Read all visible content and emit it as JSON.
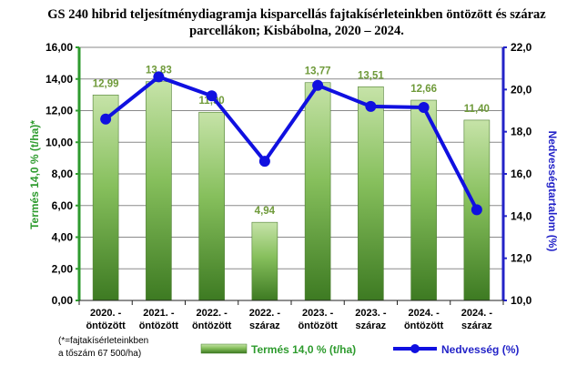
{
  "chart_data": {
    "type": "bar",
    "title_line1": "GS 240 hibrid teljesítménydiagramja kisparcellás fajtakísérleteinkben öntözött és száraz",
    "title_line2": "parcellákon; Kisbábolna, 2020 – 2024.",
    "categories": [
      [
        "2020. -",
        "öntözött"
      ],
      [
        "2021. -",
        "öntözött"
      ],
      [
        "2022. -",
        "öntözött"
      ],
      [
        "2022. -",
        "száraz"
      ],
      [
        "2023. -",
        "öntözött"
      ],
      [
        "2023. -",
        "száraz"
      ],
      [
        "2024. -",
        "öntözött"
      ],
      [
        "2024. -",
        "száraz"
      ]
    ],
    "series": [
      {
        "name": "Termés 14,0 % (t/ha)",
        "kind": "bar",
        "axis": "left",
        "values": [
          12.99,
          13.83,
          11.9,
          4.94,
          13.77,
          13.51,
          12.66,
          11.4
        ],
        "labels": [
          "12,99",
          "13,83",
          "11,90",
          "4,94",
          "13,77",
          "13,51",
          "12,66",
          "11,40"
        ],
        "color_top": "#c6e3a8",
        "color_bottom": "#3d7a22"
      },
      {
        "name": "Nedvesség (%)",
        "kind": "line",
        "axis": "right",
        "values": [
          18.6,
          20.6,
          19.7,
          16.6,
          20.2,
          19.2,
          19.15,
          14.3
        ],
        "color": "#1010e0"
      }
    ],
    "ylabel": "Termés 14,0 % (t/ha)*",
    "y2label": "Nedvességtartalom (%)",
    "ylim": [
      0,
      16
    ],
    "yticks": [
      "0,00",
      "2,00",
      "4,00",
      "6,00",
      "8,00",
      "10,00",
      "12,00",
      "14,00",
      "16,00"
    ],
    "y2lim": [
      10,
      22
    ],
    "y2ticks": [
      "10,0",
      "12,0",
      "14,0",
      "16,0",
      "18,0",
      "20,0",
      "22,0"
    ],
    "grid": true,
    "legend": [
      "Termés 14,0 % (t/ha)",
      "Nedvesség (%)"
    ],
    "legend_position": "bottom",
    "footnote_line1": "(*=fajtakísérleteinkben",
    "footnote_line2": "a tőszám 67 500/ha)",
    "colors": {
      "left_axis": "#2e9b2e",
      "right_axis": "#2323c8",
      "bar_label": "#6f9a3a",
      "grid": "#8a8a8a"
    }
  }
}
